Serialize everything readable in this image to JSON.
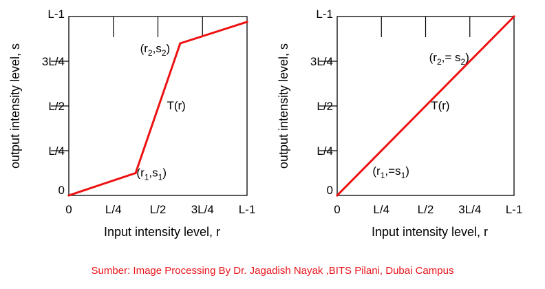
{
  "chart_data": [
    {
      "type": "line",
      "xlabel": "Input intensity level, r",
      "ylabel": "output intensity level, s",
      "xlim": [
        0,
        1
      ],
      "ylim": [
        0,
        1
      ],
      "x_ticks": [
        {
          "value": 0,
          "label": "0"
        },
        {
          "value": 0.25,
          "label": "L/4"
        },
        {
          "value": 0.5,
          "label": "L/2"
        },
        {
          "value": 0.75,
          "label": "3L/4"
        },
        {
          "value": 1,
          "label": "L-1"
        }
      ],
      "y_ticks": [
        {
          "value": 0,
          "label": "0"
        },
        {
          "value": 0.25,
          "label": "L/4"
        },
        {
          "value": 0.5,
          "label": "L/2"
        },
        {
          "value": 0.75,
          "label": "3L/4"
        },
        {
          "value": 1,
          "label": "L-1"
        }
      ],
      "grid": false,
      "series": [
        {
          "color": "#ee1111",
          "x": [
            0,
            0.375,
            0.625,
            1
          ],
          "y": [
            0,
            0.125,
            0.85,
            0.97
          ]
        }
      ],
      "annotations": [
        {
          "text": "(r1,s1)",
          "main1": "(r",
          "sub1": "1",
          "main2": ",s",
          "sub2": "1",
          "main3": ")",
          "x": 0.38,
          "y": 0.105
        },
        {
          "text": "(r2,s2)",
          "main1": "(r",
          "sub1": "2",
          "main2": ",s",
          "sub2": "2",
          "main3": ")",
          "x": 0.4,
          "y": 0.8
        },
        {
          "text": "T(r)",
          "main1": "T(r)",
          "x": 0.55,
          "y": 0.48
        }
      ]
    },
    {
      "type": "line",
      "xlabel": "Input intensity level, r",
      "ylabel": "output intensity level, s",
      "xlim": [
        0,
        1
      ],
      "ylim": [
        0,
        1
      ],
      "x_ticks": [
        {
          "value": 0,
          "label": "0"
        },
        {
          "value": 0.25,
          "label": "L/4"
        },
        {
          "value": 0.5,
          "label": "L/2"
        },
        {
          "value": 0.75,
          "label": "3L/4"
        },
        {
          "value": 1,
          "label": "L-1"
        }
      ],
      "y_ticks": [
        {
          "value": 0,
          "label": "0"
        },
        {
          "value": 0.25,
          "label": "L/4"
        },
        {
          "value": 0.5,
          "label": "L/2"
        },
        {
          "value": 0.75,
          "label": "3L/4"
        },
        {
          "value": 1,
          "label": "L-1"
        }
      ],
      "grid": false,
      "series": [
        {
          "color": "#ee1111",
          "x": [
            0,
            1
          ],
          "y": [
            0,
            1
          ]
        }
      ],
      "annotations": [
        {
          "text": "(r1,=s1)",
          "main1": "(r",
          "sub1": "1",
          "main2": ",=s",
          "sub2": "1",
          "main3": ")",
          "x": 0.2,
          "y": 0.115
        },
        {
          "text": "(r2,= s2)",
          "main1": "(r",
          "sub1": "2",
          "main2": ",= s",
          "sub2": "2",
          "main3": ")",
          "x": 0.52,
          "y": 0.75
        },
        {
          "text": "T(r)",
          "main1": "T(r)",
          "x": 0.53,
          "y": 0.48
        }
      ]
    }
  ],
  "caption": "Sumber: Image Processing By Dr. Jagadish Nayak ,BITS Pilani, Dubai Campus",
  "caption_color": "#e8141b"
}
